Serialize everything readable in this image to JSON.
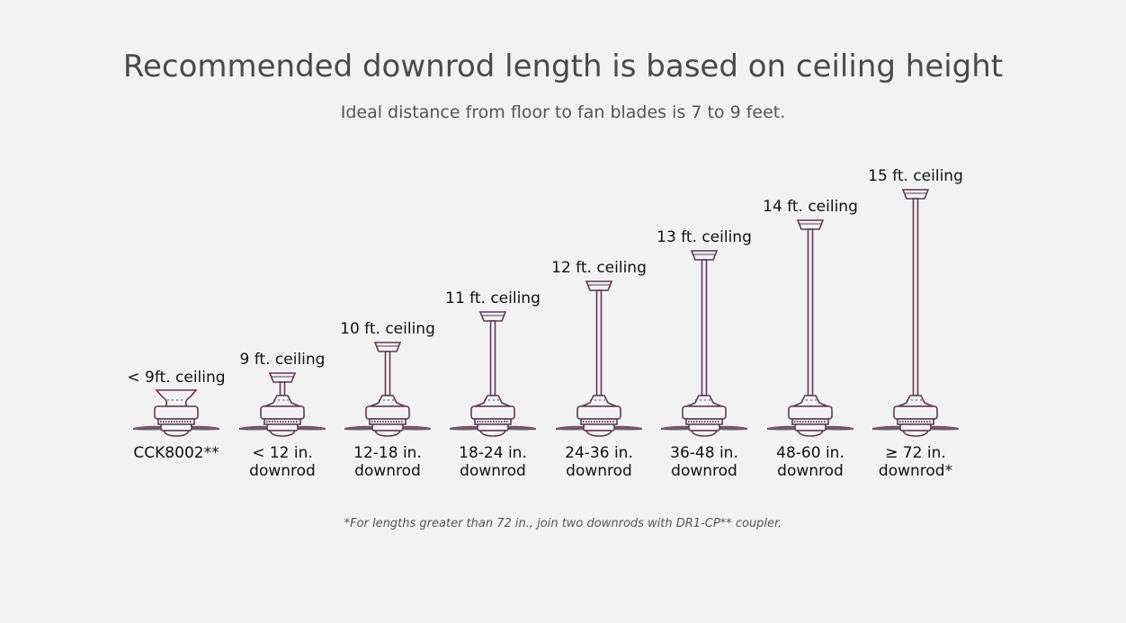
{
  "title": "Recommended downrod length is based on ceiling height",
  "subtitle": "Ideal distance from floor to fan blades is 7 to 9 feet.",
  "stroke_color": "#5b3b52",
  "columns": [
    {
      "ceiling": "< 9ft. ceiling",
      "line1": "CCK8002**",
      "line2": ""
    },
    {
      "ceiling": "9 ft. ceiling",
      "line1": "< 12 in.",
      "line2": "downrod"
    },
    {
      "ceiling": "10 ft. ceiling",
      "line1": "12-18 in.",
      "line2": "downrod"
    },
    {
      "ceiling": "11 ft. ceiling",
      "line1": "18-24 in.",
      "line2": "downrod"
    },
    {
      "ceiling": "12 ft. ceiling",
      "line1": "24-36 in.",
      "line2": "downrod"
    },
    {
      "ceiling": "13 ft. ceiling",
      "line1": "36-48 in.",
      "line2": "downrod"
    },
    {
      "ceiling": "14 ft. ceiling",
      "line1": "48-60 in.",
      "line2": "downrod"
    },
    {
      "ceiling": "15 ft. ceiling",
      "line1": "≥ 72 in.",
      "line2": "downrod*"
    }
  ],
  "footnote": "*For lengths greater than 72 in., join two downrods with DR1-CP** coupler."
}
